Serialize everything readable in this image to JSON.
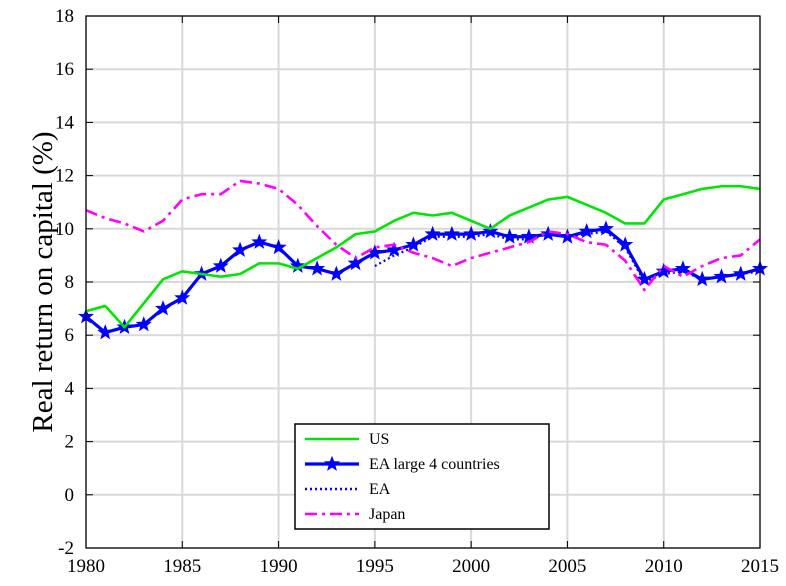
{
  "chart_data": {
    "type": "line",
    "title": "",
    "xlabel": "",
    "ylabel": "Real return on capital (%)",
    "xlim": [
      1980,
      2015
    ],
    "ylim": [
      -2,
      18
    ],
    "xticks": [
      1980,
      1985,
      1990,
      1995,
      2000,
      2005,
      2010,
      2015
    ],
    "yticks": [
      -2,
      0,
      2,
      4,
      6,
      8,
      10,
      12,
      14,
      16,
      18
    ],
    "grid": true,
    "legend_position": "bottom-center",
    "series": [
      {
        "name": "US",
        "color": "#00e600",
        "style": "solid",
        "marker": "none",
        "x": [
          1980,
          1981,
          1982,
          1983,
          1984,
          1985,
          1986,
          1987,
          1988,
          1989,
          1990,
          1991,
          1992,
          1993,
          1994,
          1995,
          1996,
          1997,
          1998,
          1999,
          2000,
          2001,
          2002,
          2003,
          2004,
          2005,
          2006,
          2007,
          2008,
          2009,
          2010,
          2011,
          2012,
          2013,
          2014,
          2015
        ],
        "y": [
          6.9,
          7.1,
          6.3,
          7.2,
          8.1,
          8.4,
          8.3,
          8.2,
          8.3,
          8.7,
          8.7,
          8.5,
          8.9,
          9.3,
          9.8,
          9.9,
          10.3,
          10.6,
          10.5,
          10.6,
          10.3,
          10.0,
          10.5,
          10.8,
          11.1,
          11.2,
          10.9,
          10.6,
          10.2,
          10.2,
          11.1,
          11.3,
          11.5,
          11.6,
          11.6,
          11.5
        ]
      },
      {
        "name": "EA large 4 countries",
        "color": "#0000ff",
        "style": "solid",
        "marker": "star",
        "x": [
          1980,
          1981,
          1982,
          1983,
          1984,
          1985,
          1986,
          1987,
          1988,
          1989,
          1990,
          1991,
          1992,
          1993,
          1994,
          1995,
          1996,
          1997,
          1998,
          1999,
          2000,
          2001,
          2002,
          2003,
          2004,
          2005,
          2006,
          2007,
          2008,
          2009,
          2010,
          2011,
          2012,
          2013,
          2014,
          2015
        ],
        "y": [
          6.7,
          6.1,
          6.3,
          6.4,
          7.0,
          7.4,
          8.3,
          8.6,
          9.2,
          9.5,
          9.3,
          8.6,
          8.5,
          8.3,
          8.7,
          9.1,
          9.2,
          9.4,
          9.8,
          9.8,
          9.8,
          9.9,
          9.7,
          9.7,
          9.8,
          9.7,
          9.9,
          10.0,
          9.4,
          8.1,
          8.4,
          8.5,
          8.1,
          8.2,
          8.3,
          8.5
        ]
      },
      {
        "name": "EA",
        "color": "#0000ff",
        "style": "dotted",
        "marker": "none",
        "x": [
          1995,
          1996,
          1997,
          1998,
          1999,
          2000,
          2001,
          2002,
          2003,
          2004,
          2005,
          2006,
          2007,
          2008,
          2009,
          2010,
          2011,
          2012,
          2013,
          2014,
          2015
        ],
        "y": [
          8.6,
          9.0,
          9.3,
          9.7,
          9.7,
          9.7,
          9.8,
          9.6,
          9.6,
          9.8,
          9.7,
          9.8,
          9.9,
          9.3,
          8.0,
          8.3,
          8.4,
          8.1,
          8.2,
          8.3,
          8.4
        ]
      },
      {
        "name": "Japan",
        "color": "#ff00ff",
        "style": "dashdot",
        "marker": "none",
        "x": [
          1980,
          1981,
          1982,
          1983,
          1984,
          1985,
          1986,
          1987,
          1988,
          1989,
          1990,
          1991,
          1992,
          1993,
          1994,
          1995,
          1996,
          1997,
          1998,
          1999,
          2000,
          2001,
          2002,
          2003,
          2004,
          2005,
          2006,
          2007,
          2008,
          2009,
          2010,
          2011,
          2012,
          2013,
          2014,
          2015
        ],
        "y": [
          10.7,
          10.4,
          10.2,
          9.9,
          10.3,
          11.1,
          11.3,
          11.3,
          11.8,
          11.7,
          11.5,
          10.9,
          10.1,
          9.4,
          8.9,
          9.3,
          9.4,
          9.1,
          8.9,
          8.6,
          8.9,
          9.1,
          9.3,
          9.5,
          9.9,
          9.8,
          9.5,
          9.4,
          8.8,
          7.7,
          8.6,
          8.2,
          8.6,
          8.9,
          9.0,
          9.6
        ]
      }
    ]
  }
}
